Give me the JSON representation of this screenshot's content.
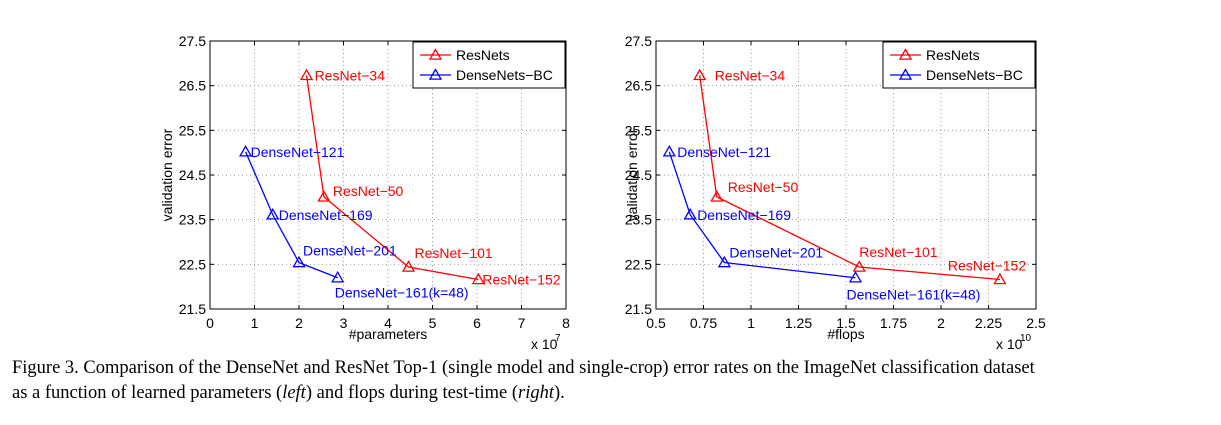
{
  "caption": {
    "line1": "Figure 3. Comparison of the DenseNet and ResNet Top-1 (single model and single-crop) error rates on the ImageNet classification dataset",
    "line2_pre": "as a function of learned parameters (",
    "line2_left": "left",
    "line2_mid": ") and flops during test-time (",
    "line2_right": "right",
    "line2_post": ")."
  },
  "chart_data": [
    {
      "type": "line",
      "xlabel": "#parameters",
      "ylabel": "validation error",
      "x_exponent_label": "x 10",
      "x_exponent": "7",
      "xlim": [
        0,
        8
      ],
      "ylim": [
        21.5,
        27.5
      ],
      "xticks": [
        0,
        1,
        2,
        3,
        4,
        5,
        6,
        7,
        8
      ],
      "xtick_labels": [
        "0",
        "1",
        "2",
        "3",
        "4",
        "5",
        "6",
        "7",
        "8"
      ],
      "yticks": [
        21.5,
        22.5,
        23.5,
        24.5,
        25.5,
        26.5,
        27.5
      ],
      "ytick_labels": [
        "21.5",
        "22.5",
        "23.5",
        "24.5",
        "25.5",
        "26.5",
        "27.5"
      ],
      "grid": true,
      "legend_position": "top-right",
      "series": [
        {
          "name": "ResNets",
          "color": "#ff0000",
          "points": [
            {
              "x": 2.17,
              "y": 26.73,
              "label": "ResNet−34"
            },
            {
              "x": 2.56,
              "y": 24.01,
              "label": "ResNet−50"
            },
            {
              "x": 4.46,
              "y": 22.44,
              "label": "ResNet−101"
            },
            {
              "x": 6.03,
              "y": 22.16,
              "label": "ResNet−152"
            }
          ]
        },
        {
          "name": "DenseNets−BC",
          "color": "#0000ff",
          "points": [
            {
              "x": 0.8,
              "y": 25.02,
              "label": "DenseNet−121"
            },
            {
              "x": 1.41,
              "y": 23.61,
              "label": "DenseNet−169"
            },
            {
              "x": 2.0,
              "y": 22.54,
              "label": "DenseNet−201"
            },
            {
              "x": 2.87,
              "y": 22.2,
              "label": "DenseNet−161(k=48)"
            }
          ]
        }
      ]
    },
    {
      "type": "line",
      "xlabel": "#flops",
      "ylabel": "validation error",
      "x_exponent_label": "x 10",
      "x_exponent": "10",
      "xlim": [
        0.5,
        2.5
      ],
      "ylim": [
        21.5,
        27.5
      ],
      "xticks": [
        0.5,
        0.75,
        1,
        1.25,
        1.5,
        1.75,
        2,
        2.25,
        2.5
      ],
      "xtick_labels": [
        "0.5",
        "0.75",
        "1",
        "1.25",
        "1.5",
        "1.75",
        "2",
        "2.25",
        "2.5"
      ],
      "yticks": [
        21.5,
        22.5,
        23.5,
        24.5,
        25.5,
        26.5,
        27.5
      ],
      "ytick_labels": [
        "21.5",
        "22.5",
        "23.5",
        "24.5",
        "25.5",
        "26.5",
        "27.5"
      ],
      "grid": true,
      "legend_position": "top-right",
      "series": [
        {
          "name": "ResNets",
          "color": "#ff0000",
          "points": [
            {
              "x": 0.73,
              "y": 26.73,
              "label": "ResNet−34"
            },
            {
              "x": 0.82,
              "y": 24.01,
              "label": "ResNet−50"
            },
            {
              "x": 1.57,
              "y": 22.44,
              "label": "ResNet−101"
            },
            {
              "x": 2.31,
              "y": 22.16,
              "label": "ResNet−152"
            }
          ]
        },
        {
          "name": "DenseNets−BC",
          "color": "#0000ff",
          "points": [
            {
              "x": 0.57,
              "y": 25.02,
              "label": "DenseNet−121"
            },
            {
              "x": 0.68,
              "y": 23.61,
              "label": "DenseNet−169"
            },
            {
              "x": 0.86,
              "y": 22.54,
              "label": "DenseNet−201"
            },
            {
              "x": 1.55,
              "y": 22.2,
              "label": "DenseNet−161(k=48)"
            }
          ]
        }
      ]
    }
  ]
}
